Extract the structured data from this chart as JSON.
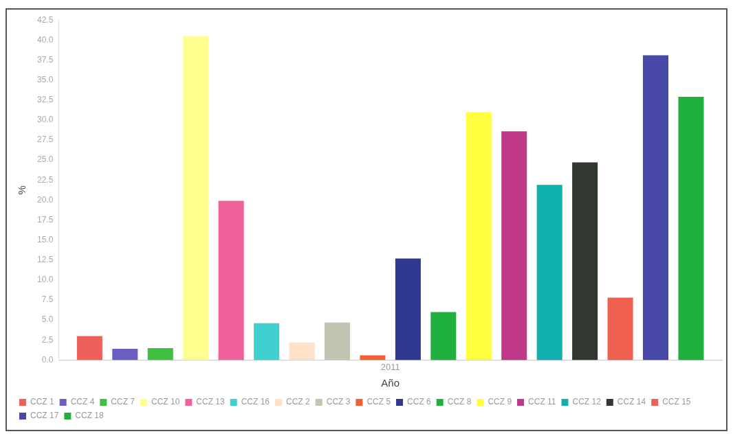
{
  "chart_data": {
    "type": "bar",
    "xlabel": "Año",
    "ylabel": "%",
    "categories": [
      "2011"
    ],
    "series": [
      {
        "name": "CCZ 1",
        "color": "#f0605a",
        "values": [
          3.0
        ]
      },
      {
        "name": "CCZ 4",
        "color": "#6a5fc0",
        "values": [
          1.4
        ]
      },
      {
        "name": "CCZ 7",
        "color": "#40c040",
        "values": [
          1.5
        ]
      },
      {
        "name": "CCZ 10",
        "color": "#ffff90",
        "values": [
          40.5
        ]
      },
      {
        "name": "CCZ 13",
        "color": "#f0609a",
        "values": [
          19.9
        ]
      },
      {
        "name": "CCZ 16",
        "color": "#40d0d0",
        "values": [
          4.6
        ]
      },
      {
        "name": "CCZ 2",
        "color": "#ffe0c8",
        "values": [
          2.2
        ]
      },
      {
        "name": "CCZ 3",
        "color": "#c0c4b0",
        "values": [
          4.7
        ]
      },
      {
        "name": "CCZ 5",
        "color": "#f06030",
        "values": [
          0.6
        ]
      },
      {
        "name": "CCZ 6",
        "color": "#303890",
        "values": [
          12.7
        ]
      },
      {
        "name": "CCZ 8",
        "color": "#20b040",
        "values": [
          6.0
        ]
      },
      {
        "name": "CCZ 9",
        "color": "#ffff40",
        "values": [
          31.0
        ]
      },
      {
        "name": "CCZ 11",
        "color": "#c03888",
        "values": [
          28.6
        ]
      },
      {
        "name": "CCZ 12",
        "color": "#10b0b0",
        "values": [
          21.9
        ]
      },
      {
        "name": "CCZ 14",
        "color": "#303830",
        "values": [
          24.7
        ]
      },
      {
        "name": "CCZ 15",
        "color": "#f06050",
        "values": [
          7.8
        ]
      },
      {
        "name": "CCZ 17",
        "color": "#4848a8",
        "values": [
          38.1
        ]
      },
      {
        "name": "CCZ 18",
        "color": "#20b040",
        "values": [
          32.9
        ]
      }
    ],
    "ylim": [
      0,
      42.5
    ],
    "yticks": [
      {
        "value": 0,
        "label": "0.0"
      },
      {
        "value": 2.5,
        "label": "2.5"
      },
      {
        "value": 5,
        "label": "5.0"
      },
      {
        "value": 7.5,
        "label": "7.5"
      },
      {
        "value": 10,
        "label": "10.0"
      },
      {
        "value": 12.5,
        "label": "12.5"
      },
      {
        "value": 15,
        "label": "15.0"
      },
      {
        "value": 17.5,
        "label": "17.5"
      },
      {
        "value": 20,
        "label": "20.0"
      },
      {
        "value": 22.5,
        "label": "22.5"
      },
      {
        "value": 25,
        "label": "25.0"
      },
      {
        "value": 27.5,
        "label": "27.5"
      },
      {
        "value": 30,
        "label": "30.0"
      },
      {
        "value": 32.5,
        "label": "32.5"
      },
      {
        "value": 35,
        "label": "35.0"
      },
      {
        "value": 37.5,
        "label": "37.5"
      },
      {
        "value": 40,
        "label": "40.0"
      },
      {
        "value": 42.5,
        "label": "42.5"
      }
    ],
    "grid": false,
    "legend": "bottom"
  }
}
